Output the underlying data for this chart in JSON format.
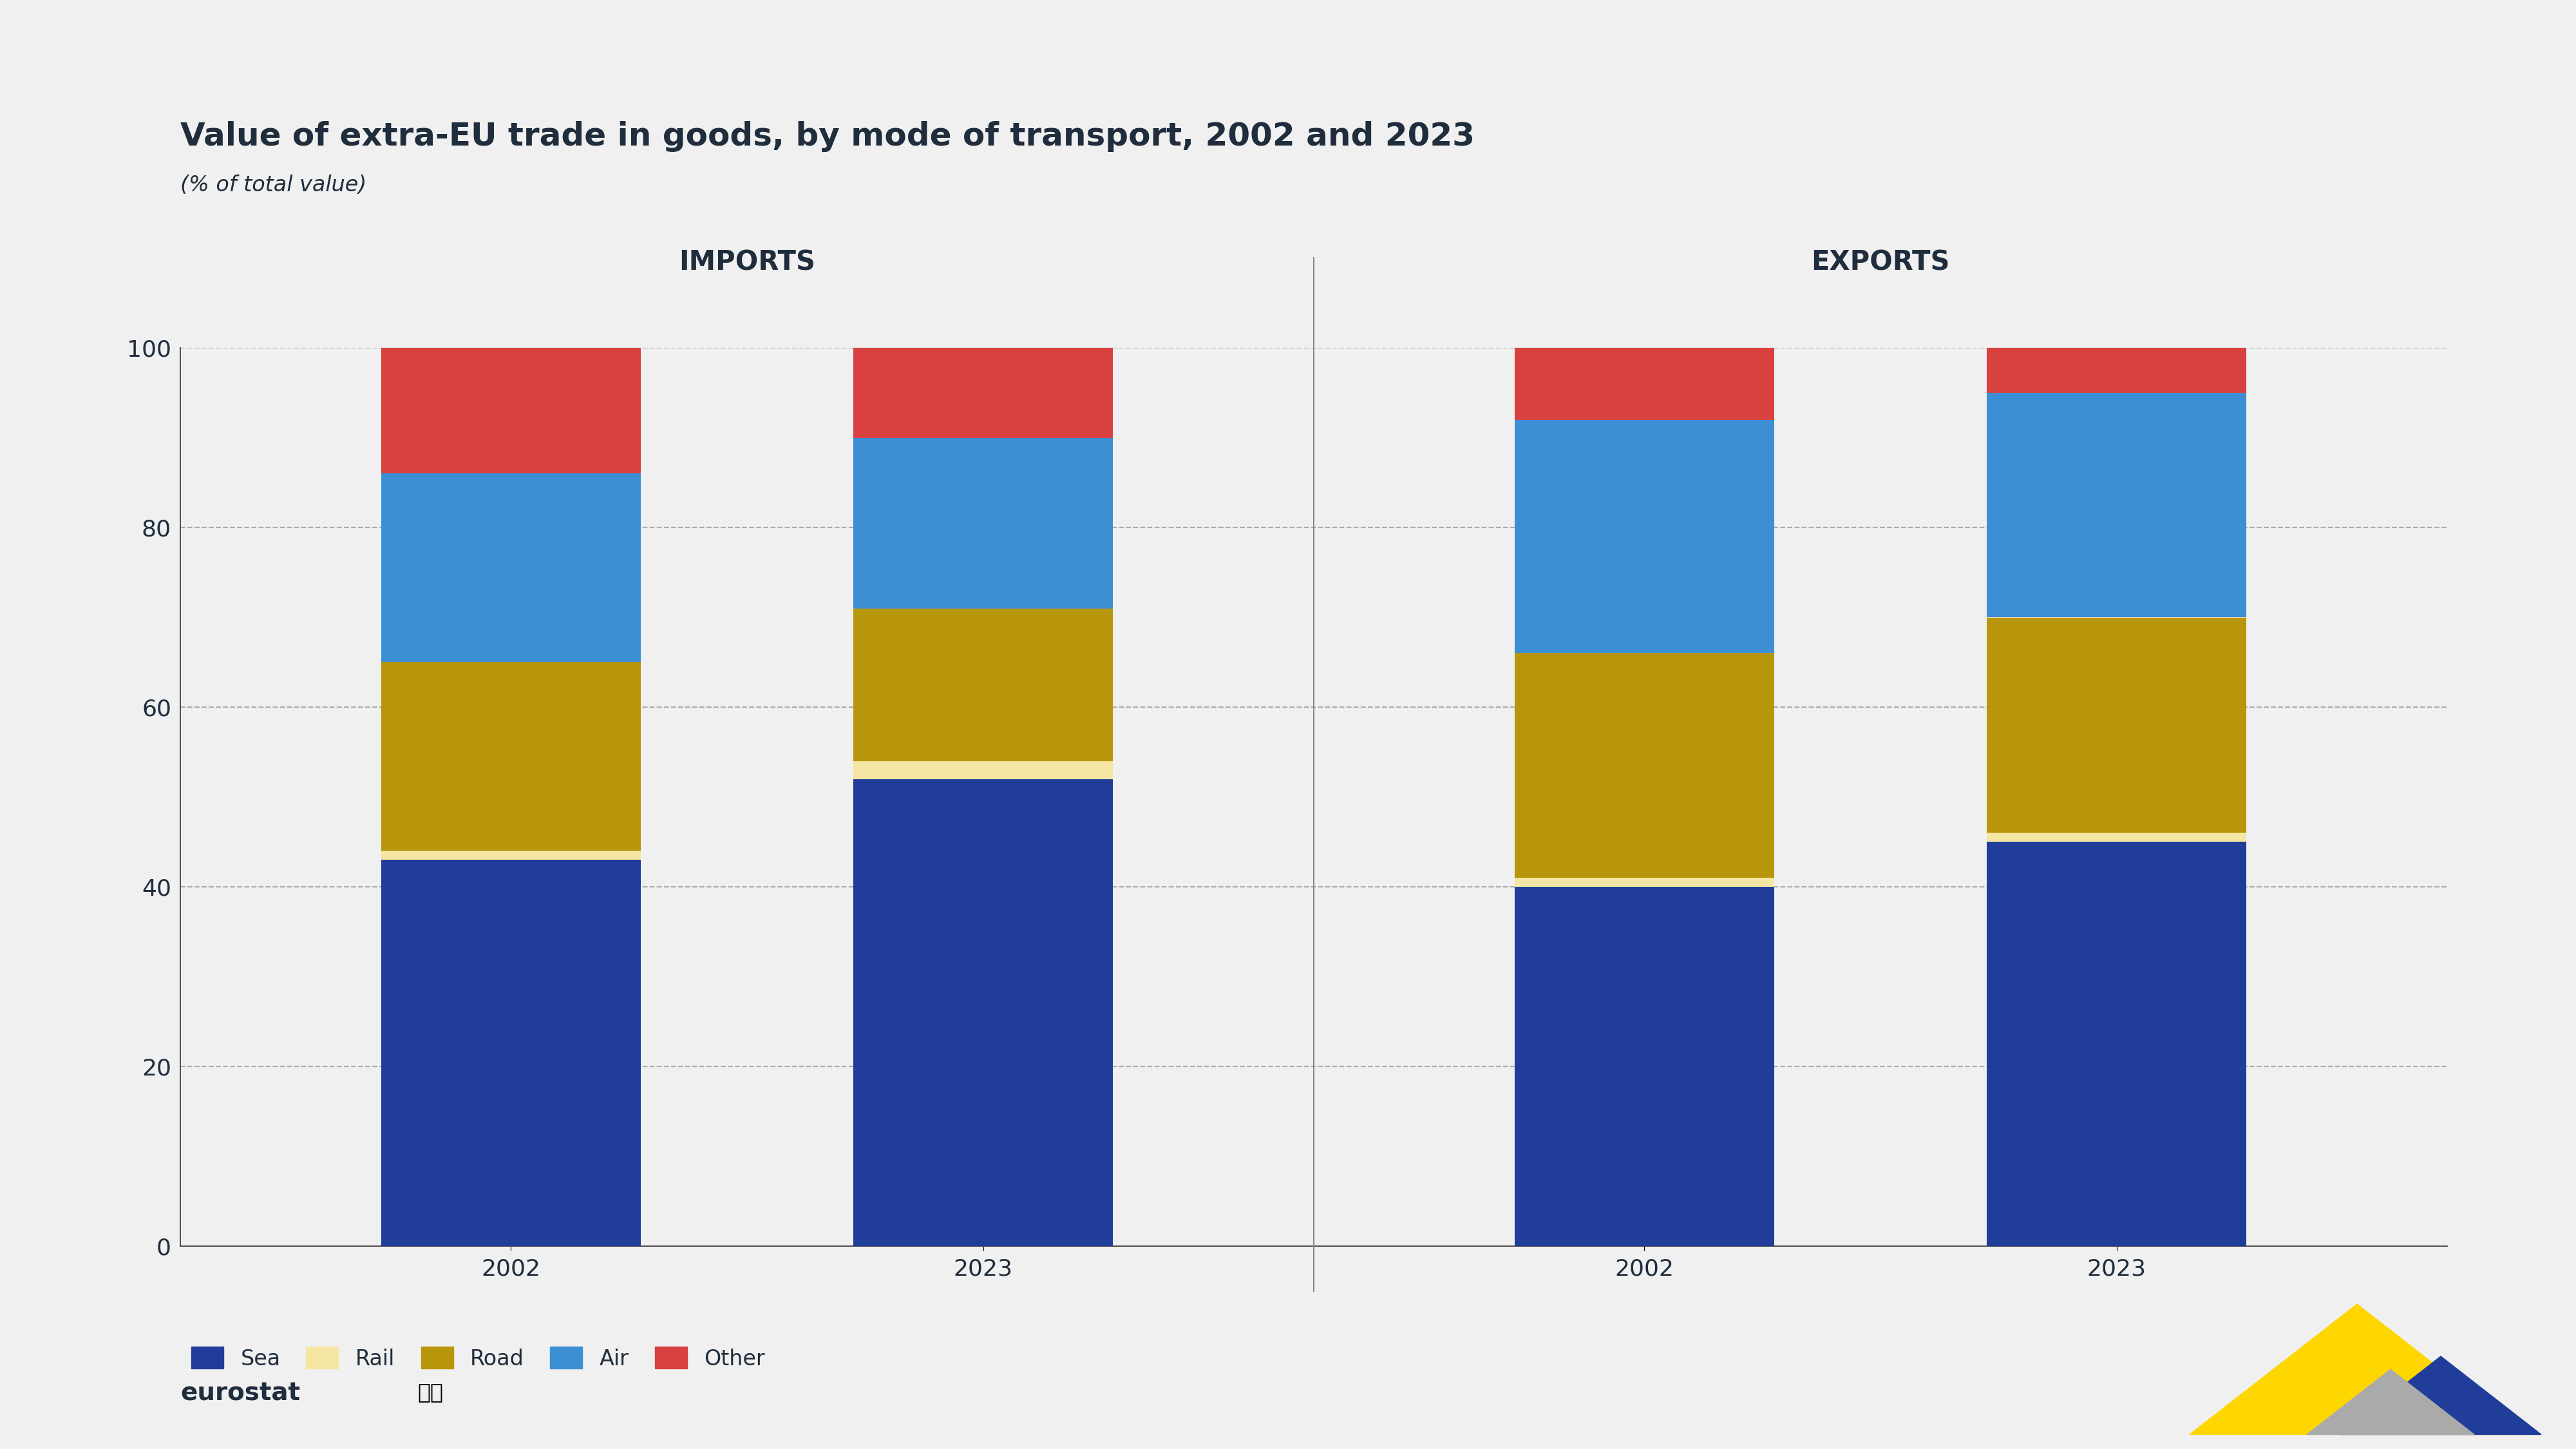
{
  "title": "Value of extra-EU trade in goods, by mode of transport, 2002 and 2023",
  "subtitle": "(% of total value)",
  "title_color": "#1f2d3d",
  "background_color": "#f0f0f0",
  "sea_color": "#1f3d99",
  "rail_color": "#f5e6a3",
  "road_color": "#b8960c",
  "air_color": "#3d8fd4",
  "other_color": "#d94040",
  "imports_2002": {
    "sea": 43,
    "rail": 1,
    "road": 21,
    "air": 21,
    "other": 14
  },
  "imports_2023": {
    "sea": 52,
    "rail": 2,
    "road": 17,
    "air": 19,
    "other": 10
  },
  "exports_2002": {
    "sea": 40,
    "rail": 1,
    "road": 25,
    "air": 26,
    "other": 8
  },
  "exports_2023": {
    "sea": 45,
    "rail": 1,
    "road": 24,
    "air": 25,
    "other": 5
  },
  "ylim": [
    0,
    100
  ],
  "yticks": [
    0,
    20,
    40,
    60,
    80,
    100
  ],
  "legend_labels": [
    "Sea",
    "Rail",
    "Road",
    "Air",
    "Other"
  ],
  "title_fontsize": 36,
  "subtitle_fontsize": 24,
  "tick_fontsize": 26,
  "group_label_fontsize": 30,
  "legend_fontsize": 24,
  "bar_width": 0.55,
  "divider_color": "#888888",
  "grid_color": "#aaaaaa",
  "grid_linestyle": "--",
  "grid_linewidth": 1.5
}
